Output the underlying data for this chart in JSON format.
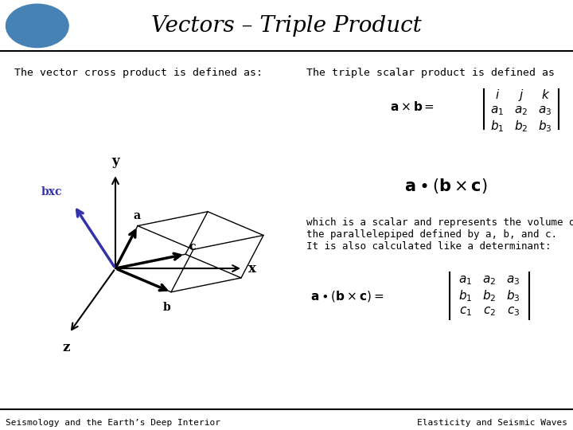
{
  "title": "Vectors – Triple Product",
  "title_fontsize": 20,
  "bg_color": "#ffffff",
  "footer_left": "Seismology and the Earth’s Deep Interior",
  "footer_right": "Elasticity and Seismic Waves",
  "footer_fontsize": 8,
  "text_cross_product": "The vector cross product is defined as:",
  "text_triple_scalar": "The triple scalar product is defined as",
  "text_which_is": "which is a scalar and represents the volume of\nthe parallelepiped defined by a, b, and c.\nIt is also calculated like a determinant:",
  "bxc_color": "#3333aa",
  "arrow_color": "#000000"
}
